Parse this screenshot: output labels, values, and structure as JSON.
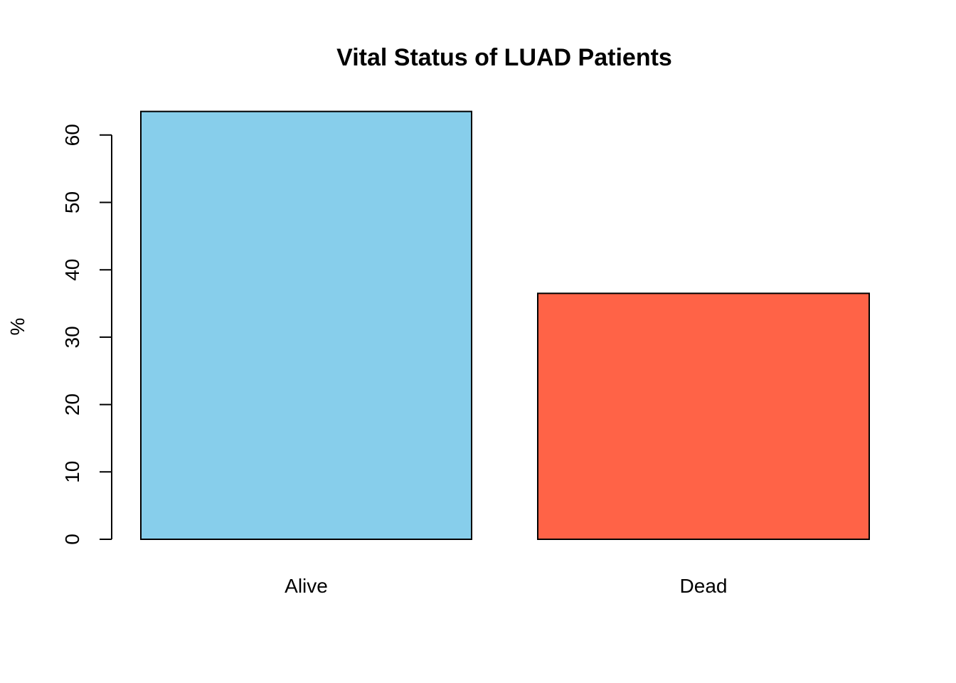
{
  "chart_data": {
    "type": "bar",
    "title": "Vital Status of LUAD Patients",
    "xlabel": "",
    "ylabel": "%",
    "categories": [
      "Alive",
      "Dead"
    ],
    "values": [
      63.5,
      36.5
    ],
    "colors": [
      "#87CEEB",
      "#FF6347"
    ],
    "bar_border_color": "#000000",
    "ylim": [
      0,
      67
    ],
    "yticks": [
      0,
      10,
      20,
      30,
      40,
      50,
      60
    ],
    "ytick_labels": [
      "0",
      "10",
      "20",
      "30",
      "40",
      "50",
      "60"
    ],
    "grid": false,
    "legend": "none"
  }
}
